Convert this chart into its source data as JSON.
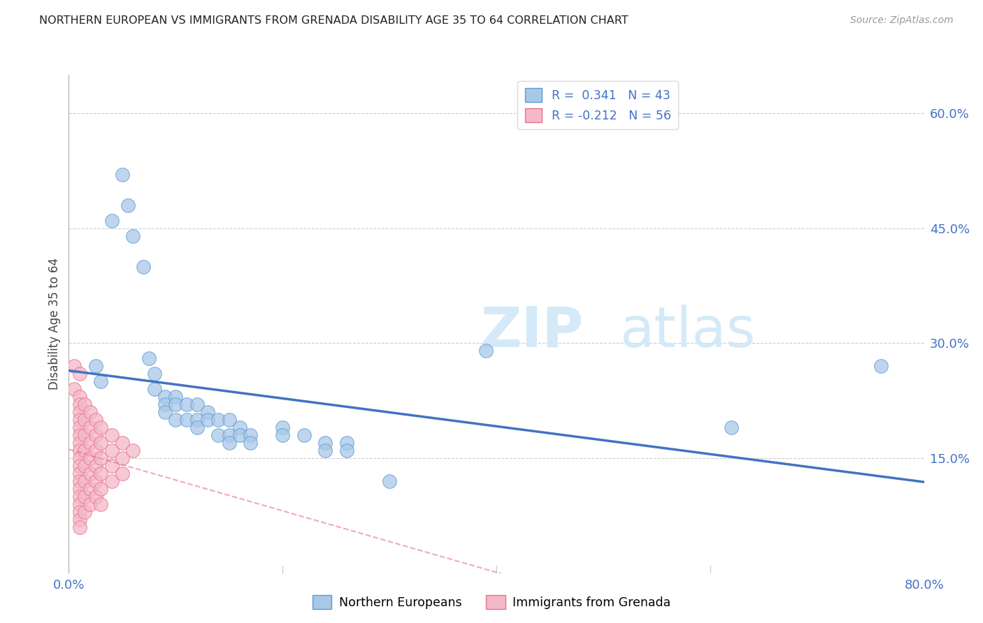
{
  "title": "NORTHERN EUROPEAN VS IMMIGRANTS FROM GRENADA DISABILITY AGE 35 TO 64 CORRELATION CHART",
  "source": "Source: ZipAtlas.com",
  "ylabel": "Disability Age 35 to 64",
  "xlim": [
    0.0,
    0.8
  ],
  "ylim": [
    0.0,
    0.65
  ],
  "blue_R": 0.341,
  "blue_N": 43,
  "pink_R": -0.212,
  "pink_N": 56,
  "blue_color": "#a8c8e8",
  "blue_edge_color": "#5b9bd5",
  "blue_line_color": "#4472c4",
  "pink_color": "#f4b8c8",
  "pink_edge_color": "#e87090",
  "pink_line_color": "#e87090",
  "grid_color": "#cccccc",
  "watermark_color": "#d0e8f8",
  "blue_scatter": [
    [
      0.025,
      0.27
    ],
    [
      0.03,
      0.25
    ],
    [
      0.04,
      0.46
    ],
    [
      0.05,
      0.52
    ],
    [
      0.055,
      0.48
    ],
    [
      0.06,
      0.44
    ],
    [
      0.07,
      0.4
    ],
    [
      0.075,
      0.28
    ],
    [
      0.08,
      0.26
    ],
    [
      0.08,
      0.24
    ],
    [
      0.09,
      0.23
    ],
    [
      0.09,
      0.22
    ],
    [
      0.09,
      0.21
    ],
    [
      0.1,
      0.23
    ],
    [
      0.1,
      0.22
    ],
    [
      0.1,
      0.2
    ],
    [
      0.11,
      0.22
    ],
    [
      0.11,
      0.2
    ],
    [
      0.12,
      0.22
    ],
    [
      0.12,
      0.2
    ],
    [
      0.12,
      0.19
    ],
    [
      0.13,
      0.21
    ],
    [
      0.13,
      0.2
    ],
    [
      0.14,
      0.2
    ],
    [
      0.14,
      0.18
    ],
    [
      0.15,
      0.2
    ],
    [
      0.15,
      0.18
    ],
    [
      0.15,
      0.17
    ],
    [
      0.16,
      0.19
    ],
    [
      0.16,
      0.18
    ],
    [
      0.17,
      0.18
    ],
    [
      0.17,
      0.17
    ],
    [
      0.2,
      0.19
    ],
    [
      0.2,
      0.18
    ],
    [
      0.22,
      0.18
    ],
    [
      0.24,
      0.17
    ],
    [
      0.24,
      0.16
    ],
    [
      0.26,
      0.17
    ],
    [
      0.26,
      0.16
    ],
    [
      0.3,
      0.12
    ],
    [
      0.39,
      0.29
    ],
    [
      0.62,
      0.19
    ],
    [
      0.76,
      0.27
    ]
  ],
  "pink_scatter": [
    [
      0.005,
      0.27
    ],
    [
      0.005,
      0.24
    ],
    [
      0.01,
      0.26
    ],
    [
      0.01,
      0.23
    ],
    [
      0.01,
      0.22
    ],
    [
      0.01,
      0.21
    ],
    [
      0.01,
      0.2
    ],
    [
      0.01,
      0.19
    ],
    [
      0.01,
      0.18
    ],
    [
      0.01,
      0.17
    ],
    [
      0.01,
      0.16
    ],
    [
      0.01,
      0.15
    ],
    [
      0.01,
      0.14
    ],
    [
      0.01,
      0.13
    ],
    [
      0.01,
      0.12
    ],
    [
      0.01,
      0.11
    ],
    [
      0.01,
      0.1
    ],
    [
      0.01,
      0.09
    ],
    [
      0.01,
      0.08
    ],
    [
      0.01,
      0.07
    ],
    [
      0.01,
      0.06
    ],
    [
      0.015,
      0.22
    ],
    [
      0.015,
      0.2
    ],
    [
      0.015,
      0.18
    ],
    [
      0.015,
      0.16
    ],
    [
      0.015,
      0.14
    ],
    [
      0.015,
      0.12
    ],
    [
      0.015,
      0.1
    ],
    [
      0.015,
      0.08
    ],
    [
      0.02,
      0.21
    ],
    [
      0.02,
      0.19
    ],
    [
      0.02,
      0.17
    ],
    [
      0.02,
      0.15
    ],
    [
      0.02,
      0.13
    ],
    [
      0.02,
      0.11
    ],
    [
      0.02,
      0.09
    ],
    [
      0.025,
      0.2
    ],
    [
      0.025,
      0.18
    ],
    [
      0.025,
      0.16
    ],
    [
      0.025,
      0.14
    ],
    [
      0.025,
      0.12
    ],
    [
      0.025,
      0.1
    ],
    [
      0.03,
      0.19
    ],
    [
      0.03,
      0.17
    ],
    [
      0.03,
      0.15
    ],
    [
      0.03,
      0.13
    ],
    [
      0.03,
      0.11
    ],
    [
      0.03,
      0.09
    ],
    [
      0.04,
      0.18
    ],
    [
      0.04,
      0.16
    ],
    [
      0.04,
      0.14
    ],
    [
      0.04,
      0.12
    ],
    [
      0.05,
      0.17
    ],
    [
      0.05,
      0.15
    ],
    [
      0.05,
      0.13
    ],
    [
      0.06,
      0.16
    ]
  ]
}
